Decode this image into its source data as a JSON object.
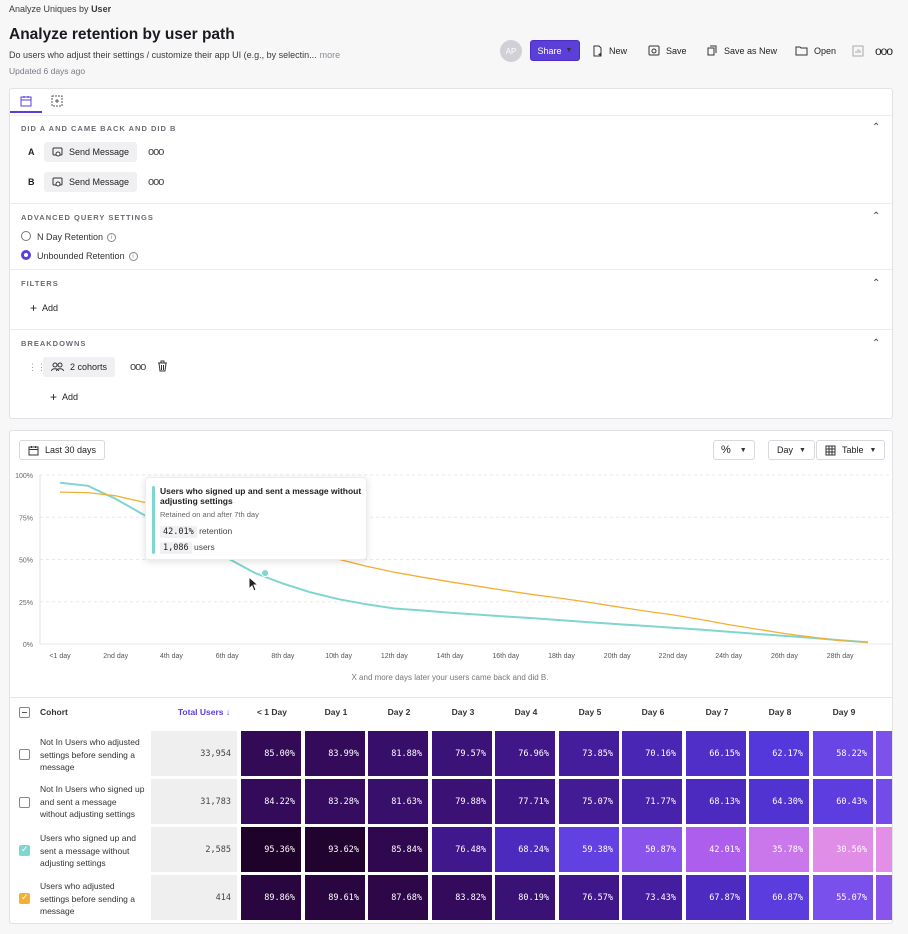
{
  "header": {
    "analyze_prefix": "Analyze Uniques by",
    "analyze_entity": "User",
    "title": "Analyze retention by user path",
    "description": "Do users who adjust their settings / customize their app UI (e.g., by selectin...",
    "more_label": "more",
    "updated": "Updated 6 days ago"
  },
  "toolbar": {
    "avatar_initials": "AP",
    "share_label": "Share",
    "new_label": "New",
    "save_label": "Save",
    "save_as_new_label": "Save as New",
    "open_label": "Open"
  },
  "query": {
    "did_section_label": "DID A AND CAME BACK AND DID B",
    "events": [
      {
        "letter": "A",
        "name": "Send Message"
      },
      {
        "letter": "B",
        "name": "Send Message"
      }
    ],
    "advanced_label": "ADVANCED QUERY SETTINGS",
    "retention_options": [
      {
        "label": "N Day Retention",
        "selected": false
      },
      {
        "label": "Unbounded Retention",
        "selected": true
      }
    ],
    "filters_label": "FILTERS",
    "filters_add": "Add",
    "breakdowns_label": "BREAKDOWNS",
    "breakdown_chip": "2 cohorts",
    "breakdowns_add": "Add"
  },
  "controls": {
    "date_range": "Last 30 days",
    "interval": "Day",
    "view": "Table"
  },
  "chart_data": {
    "type": "line",
    "x": [
      "<1 day",
      "1st day",
      "2nd day",
      "3rd day",
      "4th day",
      "5th day",
      "6th day",
      "7th day",
      "8th day",
      "9th day",
      "10th day",
      "11th day",
      "12th day",
      "13th day",
      "14th day",
      "15th day",
      "16th day",
      "17th day",
      "18th day",
      "19th day",
      "20th day",
      "21st day",
      "22nd day",
      "23rd day",
      "24th day",
      "25th day",
      "26th day",
      "27th day",
      "28th day",
      "29th day",
      "30th day"
    ],
    "x_tick_labels": [
      "<1 day",
      "2nd day",
      "4th day",
      "6th day",
      "8th day",
      "10th day",
      "12th day",
      "14th day",
      "16th day",
      "18th day",
      "20th day",
      "22nd day",
      "24th day",
      "26th day",
      "28th day"
    ],
    "y_ticks": [
      "0%",
      "25%",
      "50%",
      "75%",
      "100%"
    ],
    "ylim": [
      0,
      100
    ],
    "xlabel": "X and more days later your users came back and did B.",
    "series": [
      {
        "color": "#7fd6cf",
        "values": [
          95.36,
          93.62,
          85.84,
          76.48,
          68.24,
          59.38,
          50.87,
          42.01,
          35.78,
          30.56,
          26.5,
          23.5,
          21.0,
          19.8,
          18.5,
          17.4,
          16.3,
          15.2,
          14.0,
          12.9,
          11.8,
          10.7,
          9.6,
          8.5,
          7.2,
          6.0,
          4.8,
          3.6,
          2.2,
          1.0,
          0.8
        ]
      },
      {
        "color": "#f2b035",
        "values": [
          89.86,
          89.61,
          87.68,
          83.82,
          80.19,
          76.57,
          73.43,
          67.87,
          60.87,
          55.07,
          50.2,
          46.0,
          42.5,
          39.5,
          36.8,
          34.2,
          31.6,
          29.2,
          27.0,
          24.6,
          22.0,
          19.5,
          17.2,
          14.5,
          11.5,
          8.8,
          6.2,
          4.0,
          2.0,
          1.0,
          0.8
        ]
      }
    ]
  },
  "tooltip": {
    "title": "Users who signed up and sent a message without adjusting settings",
    "subtitle": "Retained on and after 7th day",
    "retention_value": "42.01%",
    "retention_label": "retention",
    "users_value": "1,086",
    "users_label": "users"
  },
  "table": {
    "headers": {
      "cohort": "Cohort",
      "total": "Total Users ↓",
      "days": [
        "< 1 Day",
        "Day 1",
        "Day 2",
        "Day 3",
        "Day 4",
        "Day 5",
        "Day 6",
        "Day 7",
        "Day 8",
        "Day 9"
      ]
    },
    "rows": [
      {
        "label": "Not In Users who adjusted settings before sending a message",
        "total": "33,954",
        "checked": false,
        "check_color": "",
        "values": [
          85.0,
          83.99,
          81.88,
          79.57,
          76.96,
          73.85,
          70.16,
          66.15,
          62.17,
          58.22
        ]
      },
      {
        "label": "Not In Users who signed up and sent a message without adjusting settings",
        "total": "31,783",
        "checked": false,
        "check_color": "",
        "values": [
          84.22,
          83.28,
          81.63,
          79.88,
          77.71,
          75.07,
          71.77,
          68.13,
          64.3,
          60.43
        ]
      },
      {
        "label": "Users who signed up and sent a message without adjusting settings",
        "total": "2,585",
        "checked": true,
        "check_color": "#7fd6cf",
        "values": [
          95.36,
          93.62,
          85.84,
          76.48,
          68.24,
          59.38,
          50.87,
          42.01,
          35.78,
          30.56
        ]
      },
      {
        "label": "Users who adjusted settings before sending a message",
        "total": "414",
        "checked": true,
        "check_color": "#f2b035",
        "values": [
          89.86,
          89.61,
          87.68,
          83.82,
          80.19,
          76.57,
          73.43,
          67.87,
          60.87,
          55.07
        ]
      }
    ],
    "row_value_labels": [
      [
        "85.00%",
        "83.99%",
        "81.88%",
        "79.57%",
        "76.96%",
        "73.85%",
        "70.16%",
        "66.15%",
        "62.17%",
        "58.22%"
      ],
      [
        "84.22%",
        "83.28%",
        "81.63%",
        "79.88%",
        "77.71%",
        "75.07%",
        "71.77%",
        "68.13%",
        "64.30%",
        "60.43%"
      ],
      [
        "95.36%",
        "93.62%",
        "85.84%",
        "76.48%",
        "68.24%",
        "59.38%",
        "50.87%",
        "42.01%",
        "35.78%",
        "30.56%"
      ],
      [
        "89.86%",
        "89.61%",
        "87.68%",
        "83.82%",
        "80.19%",
        "76.57%",
        "73.43%",
        "67.87%",
        "60.87%",
        "55.07%"
      ]
    ]
  }
}
